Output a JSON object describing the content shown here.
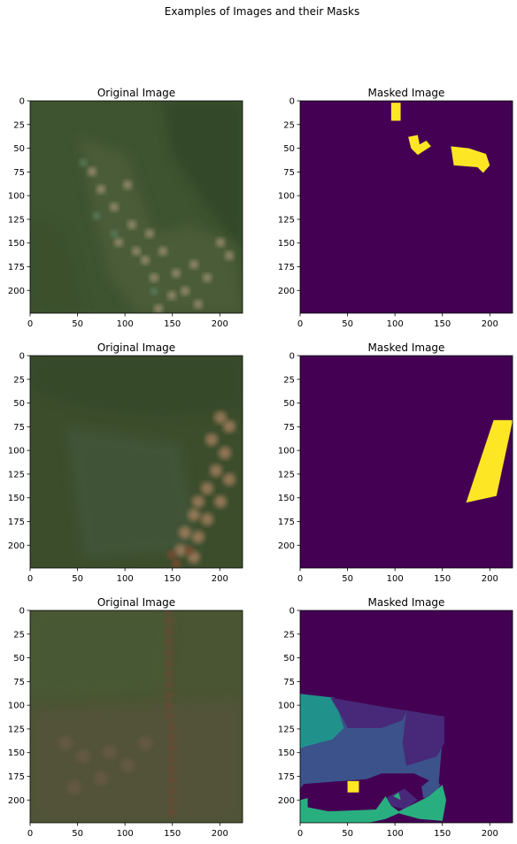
{
  "figure_title": "Examples of Images and their Masks",
  "chart_data": [
    {
      "type": "heatmap",
      "title": "Original Image",
      "kind": "photo",
      "row": 0,
      "xlim": [
        0,
        224
      ],
      "ylim": [
        224,
        0
      ],
      "xticks": [
        0,
        50,
        100,
        150,
        200
      ],
      "yticks": [
        0,
        25,
        50,
        75,
        100,
        125,
        150,
        175,
        200
      ]
    },
    {
      "type": "heatmap",
      "title": "Masked Image",
      "kind": "mask",
      "row": 0,
      "xlim": [
        0,
        224
      ],
      "ylim": [
        224,
        0
      ],
      "xticks": [
        0,
        50,
        100,
        150,
        200
      ],
      "yticks": [
        0,
        25,
        50,
        75,
        100,
        125,
        150,
        175,
        200
      ],
      "background": "#440154",
      "regions": [
        {
          "color": "#fde725",
          "points": [
            [
              96,
              2
            ],
            [
              106,
              2
            ],
            [
              106,
              21
            ],
            [
              96,
              21
            ]
          ]
        },
        {
          "color": "#fde725",
          "points": [
            [
              114,
              38
            ],
            [
              124,
              36
            ],
            [
              126,
              46
            ],
            [
              133,
              42
            ],
            [
              138,
              48
            ],
            [
              124,
              57
            ],
            [
              117,
              50
            ]
          ]
        },
        {
          "color": "#fde725",
          "points": [
            [
              159,
              48
            ],
            [
              178,
              50
            ],
            [
              196,
              56
            ],
            [
              200,
              68
            ],
            [
              193,
              76
            ],
            [
              187,
              70
            ],
            [
              162,
              68
            ]
          ]
        }
      ]
    },
    {
      "type": "heatmap",
      "title": "Original Image",
      "kind": "photo",
      "row": 1,
      "xlim": [
        0,
        224
      ],
      "ylim": [
        224,
        0
      ],
      "xticks": [
        0,
        50,
        100,
        150,
        200
      ],
      "yticks": [
        0,
        25,
        50,
        75,
        100,
        125,
        150,
        175,
        200
      ]
    },
    {
      "type": "heatmap",
      "title": "Masked Image",
      "kind": "mask",
      "row": 1,
      "xlim": [
        0,
        224
      ],
      "ylim": [
        224,
        0
      ],
      "xticks": [
        0,
        50,
        100,
        150,
        200
      ],
      "yticks": [
        0,
        25,
        50,
        75,
        100,
        125,
        150,
        175,
        200
      ],
      "background": "#440154",
      "regions": [
        {
          "color": "#fde725",
          "points": [
            [
              204,
              68
            ],
            [
              224,
              68
            ],
            [
              224,
              69
            ],
            [
              207,
              148
            ],
            [
              175,
              155
            ]
          ]
        }
      ]
    },
    {
      "type": "heatmap",
      "title": "Original Image",
      "kind": "photo",
      "row": 2,
      "xlim": [
        0,
        224
      ],
      "ylim": [
        224,
        0
      ],
      "xticks": [
        0,
        50,
        100,
        150,
        200
      ],
      "yticks": [
        0,
        25,
        50,
        75,
        100,
        125,
        150,
        175,
        200
      ]
    },
    {
      "type": "heatmap",
      "title": "Masked Image",
      "kind": "mask",
      "row": 2,
      "xlim": [
        0,
        224
      ],
      "ylim": [
        224,
        0
      ],
      "xticks": [
        0,
        50,
        100,
        150,
        200
      ],
      "yticks": [
        0,
        25,
        50,
        75,
        100,
        125,
        150,
        175,
        200
      ],
      "background": "#440154",
      "regions": [
        {
          "color": "#3b528b",
          "points": [
            [
              0,
              88
            ],
            [
              152,
              112
            ],
            [
              146,
              184
            ],
            [
              120,
              172
            ],
            [
              86,
              172
            ],
            [
              70,
              178
            ],
            [
              4,
              183
            ],
            [
              0,
              188
            ]
          ]
        },
        {
          "color": "#21918c",
          "points": [
            [
              0,
              88
            ],
            [
              36,
              92
            ],
            [
              46,
              124
            ],
            [
              34,
              136
            ],
            [
              4,
              144
            ],
            [
              0,
              146
            ]
          ]
        },
        {
          "color": "#482878",
          "points": [
            [
              32,
              92
            ],
            [
              112,
              106
            ],
            [
              108,
              116
            ],
            [
              86,
              124
            ],
            [
              50,
              124
            ],
            [
              44,
              112
            ]
          ]
        },
        {
          "color": "#482878",
          "points": [
            [
              112,
              106
            ],
            [
              152,
              112
            ],
            [
              152,
              140
            ],
            [
              144,
              154
            ],
            [
              112,
              164
            ],
            [
              108,
              140
            ]
          ]
        },
        {
          "color": "#fde725",
          "points": [
            [
              50,
              180
            ],
            [
              62,
              180
            ],
            [
              62,
              192
            ],
            [
              50,
              192
            ]
          ]
        },
        {
          "color": "#3b528b",
          "points": [
            [
              140,
              176
            ],
            [
              148,
              184
            ],
            [
              140,
              196
            ],
            [
              130,
              198
            ],
            [
              128,
              186
            ]
          ]
        },
        {
          "color": "#482878",
          "points": [
            [
              90,
              198
            ],
            [
              110,
              188
            ],
            [
              124,
              200
            ],
            [
              110,
              210
            ],
            [
              96,
              206
            ]
          ]
        },
        {
          "color": "#29af7f",
          "points": [
            [
              0,
              206
            ],
            [
              30,
              212
            ],
            [
              80,
              210
            ],
            [
              90,
              196
            ],
            [
              96,
              206
            ],
            [
              104,
              212
            ],
            [
              120,
              204
            ],
            [
              136,
              196
            ],
            [
              150,
              184
            ],
            [
              154,
              200
            ],
            [
              150,
              222
            ],
            [
              126,
              220
            ],
            [
              104,
              214
            ],
            [
              90,
              220
            ],
            [
              72,
              224
            ],
            [
              0,
              224
            ]
          ]
        },
        {
          "color": "#29af7f",
          "points": [
            [
              0,
              200
            ],
            [
              8,
              198
            ],
            [
              8,
              212
            ],
            [
              0,
              212
            ]
          ]
        },
        {
          "color": "#29af7f",
          "points": [
            [
              98,
              196
            ],
            [
              104,
              192
            ],
            [
              106,
              200
            ]
          ]
        }
      ]
    }
  ]
}
